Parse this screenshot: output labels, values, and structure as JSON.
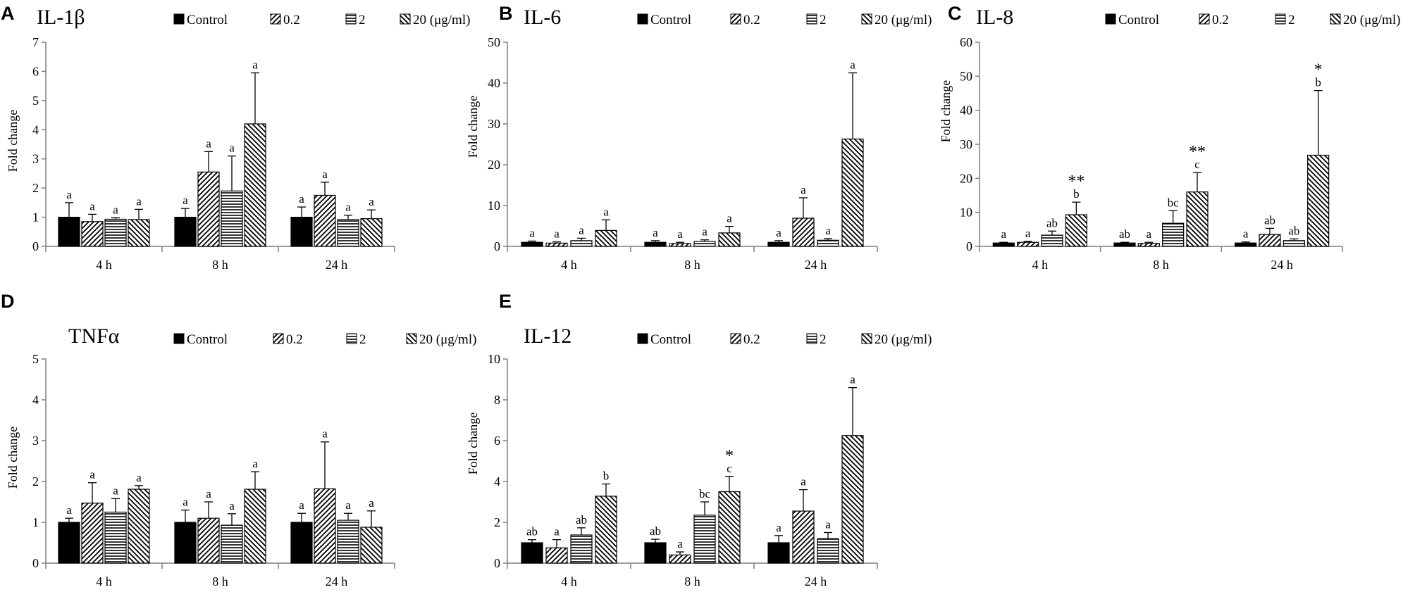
{
  "figure": {
    "series": [
      {
        "name": "Control",
        "fill": "solid"
      },
      {
        "name": "0.2",
        "fill": "diag-right"
      },
      {
        "name": "2",
        "fill": "horizontal"
      },
      {
        "name": "20 (μg/ml)",
        "fill": "diag-left"
      }
    ],
    "colors": {
      "ink": "#000000",
      "background": "#ffffff",
      "axis": "#7f7f7f"
    }
  },
  "chart_data": [
    {
      "panel": "A",
      "title": "IL-1β",
      "type": "bar",
      "ylabel": "Fold change",
      "ylim": [
        0,
        7
      ],
      "yticks": [
        0,
        1,
        2,
        3,
        4,
        5,
        6,
        7
      ],
      "categories": [
        "4 h",
        "8 h",
        "24 h"
      ],
      "legend": [
        "Control",
        "0.2",
        "2",
        "20 (μg/ml)"
      ],
      "series": [
        {
          "name": "Control",
          "values": [
            1.0,
            1.0,
            1.0
          ],
          "errors": [
            0.5,
            0.3,
            0.35
          ],
          "labels": [
            "a",
            "a",
            "a"
          ],
          "stars": [
            "",
            "",
            ""
          ]
        },
        {
          "name": "0.2",
          "values": [
            0.85,
            2.55,
            1.75
          ],
          "errors": [
            0.25,
            0.7,
            0.45
          ],
          "labels": [
            "a",
            "a",
            "a"
          ],
          "stars": [
            "",
            "",
            ""
          ]
        },
        {
          "name": "2",
          "values": [
            0.93,
            1.9,
            0.92
          ],
          "errors": [
            0.05,
            1.2,
            0.15
          ],
          "labels": [
            "a",
            "a",
            "a"
          ],
          "stars": [
            "",
            "",
            ""
          ]
        },
        {
          "name": "20 (μg/ml)",
          "values": [
            0.92,
            4.2,
            0.95
          ],
          "errors": [
            0.35,
            1.75,
            0.3
          ],
          "labels": [
            "a",
            "a",
            "a"
          ],
          "stars": [
            "",
            "",
            ""
          ]
        }
      ]
    },
    {
      "panel": "B",
      "title": "IL-6",
      "type": "bar",
      "ylabel": "Fold change",
      "ylim": [
        0,
        50
      ],
      "yticks": [
        0,
        10,
        20,
        30,
        40,
        50
      ],
      "categories": [
        "4 h",
        "8 h",
        "24 h"
      ],
      "legend": [
        "Control",
        "0.2",
        "2",
        "20 (μg/ml)"
      ],
      "series": [
        {
          "name": "Control",
          "values": [
            1.0,
            1.0,
            1.0
          ],
          "errors": [
            0.3,
            0.4,
            0.4
          ],
          "labels": [
            "a",
            "a",
            "a"
          ],
          "stars": [
            "",
            "",
            ""
          ]
        },
        {
          "name": "0.2",
          "values": [
            0.8,
            0.7,
            6.9
          ],
          "errors": [
            0.3,
            0.3,
            5.0
          ],
          "labels": [
            "a",
            "a",
            "a"
          ],
          "stars": [
            "",
            "",
            ""
          ]
        },
        {
          "name": "2",
          "values": [
            1.4,
            1.2,
            1.5
          ],
          "errors": [
            0.6,
            0.4,
            0.4
          ],
          "labels": [
            "a",
            "a",
            "a"
          ],
          "stars": [
            "",
            "",
            ""
          ]
        },
        {
          "name": "20 (μg/ml)",
          "values": [
            3.9,
            3.3,
            26.3
          ],
          "errors": [
            2.6,
            1.6,
            16.2
          ],
          "labels": [
            "a",
            "a",
            "a"
          ],
          "stars": [
            "",
            "",
            ""
          ]
        }
      ]
    },
    {
      "panel": "C",
      "title": "IL-8",
      "type": "bar",
      "ylabel": "Fold change",
      "ylim": [
        0,
        60
      ],
      "yticks": [
        0,
        10,
        20,
        30,
        40,
        50,
        60
      ],
      "categories": [
        "4 h",
        "8 h",
        "24 h"
      ],
      "legend": [
        "Control",
        "0.2",
        "2",
        "20 (μg/ml)"
      ],
      "series": [
        {
          "name": "Control",
          "values": [
            1.0,
            1.0,
            1.0
          ],
          "errors": [
            0.2,
            0.2,
            0.3
          ],
          "labels": [
            "a",
            "ab",
            "a"
          ],
          "stars": [
            "",
            "",
            ""
          ]
        },
        {
          "name": "0.2",
          "values": [
            1.2,
            0.9,
            3.5
          ],
          "errors": [
            0.3,
            0.3,
            1.8
          ],
          "labels": [
            "a",
            "a",
            "ab"
          ],
          "stars": [
            "",
            "",
            ""
          ]
        },
        {
          "name": "2",
          "values": [
            3.3,
            6.8,
            1.7
          ],
          "errors": [
            1.2,
            3.7,
            0.5
          ],
          "labels": [
            "ab",
            "bc",
            "ab"
          ],
          "stars": [
            "",
            "",
            ""
          ]
        },
        {
          "name": "20 (μg/ml)",
          "values": [
            9.3,
            16.0,
            26.8
          ],
          "errors": [
            3.7,
            5.7,
            19.0
          ],
          "labels": [
            "b",
            "c",
            "b"
          ],
          "stars": [
            "**",
            "**",
            "*"
          ]
        }
      ]
    },
    {
      "panel": "D",
      "title": "TNFα",
      "type": "bar",
      "ylabel": "Fold change",
      "ylim": [
        0,
        5
      ],
      "yticks": [
        0,
        1,
        2,
        3,
        4,
        5
      ],
      "categories": [
        "4 h",
        "8 h",
        "24 h"
      ],
      "legend": [
        "Control",
        "0.2",
        "2",
        "20 (μg/ml)"
      ],
      "series": [
        {
          "name": "Control",
          "values": [
            1.0,
            1.0,
            1.0
          ],
          "errors": [
            0.1,
            0.3,
            0.22
          ],
          "labels": [
            "a",
            "a",
            "a"
          ],
          "stars": [
            "",
            "",
            ""
          ]
        },
        {
          "name": "0.2",
          "values": [
            1.47,
            1.1,
            1.82
          ],
          "errors": [
            0.5,
            0.4,
            1.15
          ],
          "labels": [
            "a",
            "a",
            "a"
          ],
          "stars": [
            "",
            "",
            ""
          ]
        },
        {
          "name": "2",
          "values": [
            1.25,
            0.93,
            1.05
          ],
          "errors": [
            0.33,
            0.28,
            0.17
          ],
          "labels": [
            "a",
            "a",
            "a"
          ],
          "stars": [
            "",
            "",
            ""
          ]
        },
        {
          "name": "20 (μg/ml)",
          "values": [
            1.81,
            1.81,
            0.88
          ],
          "errors": [
            0.09,
            0.43,
            0.4
          ],
          "labels": [
            "a",
            "a",
            "a"
          ],
          "stars": [
            "",
            "",
            ""
          ]
        }
      ]
    },
    {
      "panel": "E",
      "title": "IL-12",
      "type": "bar",
      "ylabel": "Fold change",
      "ylim": [
        0,
        10
      ],
      "yticks": [
        0,
        2,
        4,
        6,
        8,
        10
      ],
      "categories": [
        "4 h",
        "8 h",
        "24 h"
      ],
      "legend": [
        "Control",
        "0.2",
        "2",
        "20 (μg/ml)"
      ],
      "series": [
        {
          "name": "Control",
          "values": [
            1.0,
            1.0,
            1.0
          ],
          "errors": [
            0.15,
            0.17,
            0.35
          ],
          "labels": [
            "ab",
            "ab",
            "a"
          ],
          "stars": [
            "",
            "",
            ""
          ]
        },
        {
          "name": "0.2",
          "values": [
            0.75,
            0.4,
            2.55
          ],
          "errors": [
            0.4,
            0.15,
            1.05
          ],
          "labels": [
            "a",
            "a",
            "a"
          ],
          "stars": [
            "",
            "",
            ""
          ]
        },
        {
          "name": "2",
          "values": [
            1.38,
            2.35,
            1.2
          ],
          "errors": [
            0.35,
            0.65,
            0.3
          ],
          "labels": [
            "ab",
            "bc",
            "a"
          ],
          "stars": [
            "",
            "",
            ""
          ]
        },
        {
          "name": "20 (μg/ml)",
          "values": [
            3.28,
            3.5,
            6.25
          ],
          "errors": [
            0.6,
            0.75,
            2.35
          ],
          "labels": [
            "b",
            "c",
            "a"
          ],
          "stars": [
            "",
            "*",
            ""
          ]
        }
      ]
    }
  ]
}
